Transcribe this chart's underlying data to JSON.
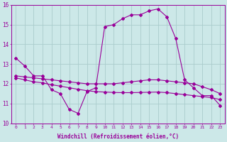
{
  "xlabel": "Windchill (Refroidissement éolien,°C)",
  "background_color": "#cce8e8",
  "grid_color": "#aacccc",
  "line_color": "#990099",
  "hours": [
    0,
    1,
    2,
    3,
    4,
    5,
    6,
    7,
    8,
    9,
    10,
    11,
    12,
    13,
    14,
    15,
    16,
    17,
    18,
    19,
    20,
    21,
    22,
    23
  ],
  "series1": [
    13.3,
    12.9,
    12.4,
    12.4,
    11.7,
    11.5,
    10.7,
    10.5,
    11.6,
    11.8,
    14.9,
    15.0,
    15.3,
    15.5,
    15.5,
    15.7,
    15.8,
    15.4,
    14.3,
    12.2,
    11.8,
    11.4,
    11.4,
    10.9
  ],
  "series2": [
    12.4,
    12.35,
    12.3,
    12.25,
    12.2,
    12.15,
    12.1,
    12.05,
    12.0,
    12.0,
    12.0,
    12.0,
    12.05,
    12.1,
    12.15,
    12.2,
    12.2,
    12.15,
    12.1,
    12.05,
    12.0,
    11.85,
    11.7,
    11.5
  ],
  "series3": [
    12.3,
    12.2,
    12.1,
    12.05,
    11.95,
    11.88,
    11.8,
    11.72,
    11.65,
    11.6,
    11.58,
    11.56,
    11.55,
    11.55,
    11.56,
    11.57,
    11.58,
    11.55,
    11.5,
    11.45,
    11.4,
    11.35,
    11.3,
    11.2
  ],
  "ylim": [
    10,
    16
  ],
  "yticks": [
    10,
    11,
    12,
    13,
    14,
    15,
    16
  ],
  "figwidth": 3.2,
  "figheight": 2.0,
  "dpi": 100
}
